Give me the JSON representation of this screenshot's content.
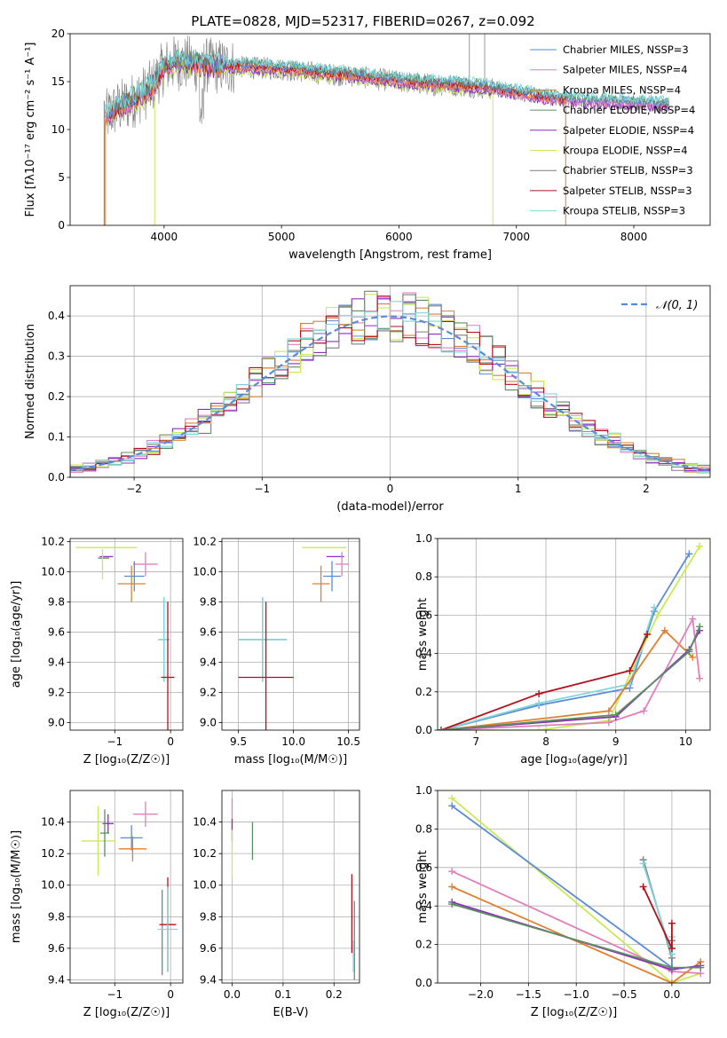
{
  "colors": {
    "chabrier_miles": "#5b8bd6",
    "salpeter_miles": "#e17fbd",
    "kroupa_miles": "#e08030",
    "chabrier_elodie": "#5a9060",
    "salpeter_elodie": "#8e2ec0",
    "kroupa_elodie": "#c9ea56",
    "chabrier_stelib": "#7f7f7f",
    "salpeter_stelib": "#b5101a",
    "kroupa_stelib": "#7fd6dc",
    "grid": "#b0b0b0",
    "normal_line": "#5b8bd6"
  },
  "chart_data": [
    {
      "type": "line",
      "title": "PLATE=0828, MJD=52317, FIBERID=0267, z=0.092",
      "xlabel": "wavelength [Angstrom, rest frame]",
      "ylabel": "Flux [fλ10⁻¹⁷ erg cm⁻² s⁻¹ A⁻¹]",
      "xlim": [
        3200,
        8650
      ],
      "ylim": [
        0,
        20
      ],
      "xticks": [
        4000,
        5000,
        6000,
        7000,
        8000
      ],
      "yticks": [
        0,
        5,
        10,
        15,
        20
      ],
      "grid": false,
      "legend_position": "top-right",
      "series": [
        {
          "name": "Chabrier MILES, NSSP=3",
          "color_key": "chabrier_miles"
        },
        {
          "name": "Salpeter MILES, NSSP=4",
          "color_key": "salpeter_miles"
        },
        {
          "name": "Kroupa MILES, NSSP=4",
          "color_key": "kroupa_miles"
        },
        {
          "name": "Chabrier ELODIE, NSSP=4",
          "color_key": "chabrier_elodie"
        },
        {
          "name": "Salpeter ELODIE, NSSP=4",
          "color_key": "salpeter_elodie"
        },
        {
          "name": "Kroupa ELODIE, NSSP=4",
          "color_key": "kroupa_elodie"
        },
        {
          "name": "Chabrier STELIB, NSSP=3",
          "color_key": "chabrier_stelib"
        },
        {
          "name": "Salpeter STELIB, NSSP=3",
          "color_key": "salpeter_stelib"
        },
        {
          "name": "Kroupa STELIB, NSSP=3",
          "color_key": "kroupa_stelib"
        }
      ],
      "continuum": {
        "x": [
          3500,
          3550,
          3600,
          3700,
          3800,
          3900,
          4000,
          4100,
          4200,
          4300,
          4500,
          4700,
          5000,
          5300,
          5600,
          6000,
          6300,
          6500,
          6700,
          7000,
          7200,
          7400,
          7600,
          7800,
          8000,
          8200,
          8300
        ],
        "y": [
          11.2,
          11.8,
          12.2,
          12.8,
          13.5,
          14.5,
          16.5,
          17.0,
          16.9,
          16.7,
          16.6,
          16.5,
          16.3,
          15.9,
          15.6,
          15.0,
          14.7,
          14.6,
          14.4,
          13.8,
          13.4,
          13.1,
          12.9,
          12.8,
          12.7,
          12.6,
          12.5
        ]
      },
      "x_range_models": [
        3500,
        7420
      ]
    },
    {
      "type": "bar",
      "xlabel": "(data-model)/error",
      "ylabel": "Normed distribution",
      "xlim": [
        -2.5,
        2.5
      ],
      "ylim": [
        0,
        0.475
      ],
      "xticks": [
        -2,
        -1,
        0,
        1,
        2
      ],
      "yticks": [
        0.0,
        0.1,
        0.2,
        0.3,
        0.4
      ],
      "grid": true,
      "legend_position": "top-right",
      "bin_edges_start": -2.5,
      "bin_width": 0.1,
      "reference": {
        "name": "𝒩(0, 1)",
        "mean": 0,
        "sigma": 1
      }
    },
    {
      "type": "scatter",
      "xlabel": "Z [log₁₀(Z/Z☉)]",
      "ylabel": "age  [log₁₀(age/yr)]",
      "xlim": [
        -1.8,
        0.22
      ],
      "ylim": [
        8.95,
        10.22
      ],
      "xticks": [
        -1,
        0
      ],
      "yticks": [
        9.0,
        9.2,
        9.4,
        9.6,
        9.8,
        10.0,
        10.2
      ],
      "grid": true,
      "points": [
        {
          "x": -1.15,
          "y": 10.1,
          "xerr": 0.12,
          "yerr": 0.0,
          "color_key": "salpeter_elodie"
        },
        {
          "x": -1.2,
          "y": 10.09,
          "xerr": 0.1,
          "yerr": 0.0,
          "color_key": "chabrier_elodie"
        },
        {
          "x": -1.15,
          "y": 10.16,
          "xerr": 0.55,
          "yerr": 0.0,
          "color_key": "kroupa_elodie"
        },
        {
          "x": -1.22,
          "y": 10.05,
          "xerr": 0.0,
          "yerr": 0.1,
          "color_key": "kroupa_elodie"
        },
        {
          "x": -0.45,
          "y": 10.05,
          "xerr": 0.22,
          "yerr": 0.08,
          "color_key": "salpeter_miles"
        },
        {
          "x": -0.65,
          "y": 9.97,
          "xerr": 0.18,
          "yerr": 0.1,
          "color_key": "chabrier_miles"
        },
        {
          "x": -0.7,
          "y": 9.92,
          "xerr": 0.25,
          "yerr": 0.12,
          "color_key": "kroupa_miles"
        },
        {
          "x": -0.12,
          "y": 9.55,
          "xerr": 0.1,
          "yerr": 0.28,
          "color_key": "chabrier_stelib"
        },
        {
          "x": -0.12,
          "y": 9.55,
          "xerr": 0.1,
          "yerr": 0.28,
          "color_key": "kroupa_stelib"
        },
        {
          "x": -0.05,
          "y": 9.3,
          "xerr": 0.12,
          "yerr": 0.5,
          "color_key": "salpeter_stelib"
        }
      ]
    },
    {
      "type": "scatter",
      "xlabel": "mass [log₁₀(M/M☉)]",
      "ylabel": "",
      "xlim": [
        9.35,
        10.6
      ],
      "ylim": [
        8.95,
        10.22
      ],
      "xticks": [
        9.5,
        10.0,
        10.5
      ],
      "yticks": [
        9.0,
        9.2,
        9.4,
        9.6,
        9.8,
        10.0,
        10.2
      ],
      "grid": true,
      "points": [
        {
          "x": 10.28,
          "y": 10.16,
          "xerr": 0.2,
          "yerr": 0.0,
          "color_key": "kroupa_elodie"
        },
        {
          "x": 10.38,
          "y": 10.1,
          "xerr": 0.08,
          "yerr": 0.0,
          "color_key": "salpeter_elodie"
        },
        {
          "x": 10.44,
          "y": 10.05,
          "xerr": 0.06,
          "yerr": 0.08,
          "color_key": "salpeter_miles"
        },
        {
          "x": 10.35,
          "y": 9.97,
          "xerr": 0.08,
          "yerr": 0.1,
          "color_key": "chabrier_miles"
        },
        {
          "x": 10.25,
          "y": 9.92,
          "xerr": 0.08,
          "yerr": 0.12,
          "color_key": "kroupa_miles"
        },
        {
          "x": 9.72,
          "y": 9.55,
          "xerr": 0.22,
          "yerr": 0.28,
          "color_key": "chabrier_stelib"
        },
        {
          "x": 9.72,
          "y": 9.55,
          "xerr": 0.22,
          "yerr": 0.28,
          "color_key": "kroupa_stelib"
        },
        {
          "x": 9.75,
          "y": 9.3,
          "xerr": 0.25,
          "yerr": 0.5,
          "color_key": "salpeter_stelib"
        }
      ]
    },
    {
      "type": "line",
      "xlabel": "age  [log₁₀(age/yr)]",
      "ylabel": "mass weight",
      "xlim": [
        6.45,
        10.35
      ],
      "ylim": [
        0,
        1.0
      ],
      "xticks": [
        7,
        8,
        9,
        10
      ],
      "yticks": [
        0.0,
        0.2,
        0.4,
        0.6,
        0.8,
        1.0
      ],
      "grid": true,
      "series": [
        {
          "color_key": "chabrier_miles",
          "x": [
            6.5,
            7.9,
            9.2,
            9.55,
            10.05
          ],
          "y": [
            0.0,
            0.13,
            0.22,
            0.62,
            0.92
          ]
        },
        {
          "color_key": "kroupa_elodie",
          "x": [
            6.5,
            7.9,
            8.9,
            9.6,
            10.2
          ],
          "y": [
            0.0,
            0.0,
            0.05,
            0.6,
            0.96
          ]
        },
        {
          "color_key": "kroupa_stelib",
          "x": [
            6.5,
            7.9,
            9.2,
            9.55
          ],
          "y": [
            0.0,
            0.14,
            0.24,
            0.64
          ]
        },
        {
          "color_key": "salpeter_stelib",
          "x": [
            6.5,
            7.9,
            9.2,
            9.45
          ],
          "y": [
            0.0,
            0.19,
            0.31,
            0.5
          ]
        },
        {
          "color_key": "kroupa_miles",
          "x": [
            6.5,
            8.9,
            9.7,
            10.1
          ],
          "y": [
            0.0,
            0.1,
            0.52,
            0.38
          ]
        },
        {
          "color_key": "salpeter_miles",
          "x": [
            6.5,
            8.9,
            9.4,
            10.1,
            10.2
          ],
          "y": [
            0.0,
            0.04,
            0.1,
            0.58,
            0.27
          ]
        },
        {
          "color_key": "salpeter_elodie",
          "x": [
            6.5,
            9.0,
            10.05,
            10.2
          ],
          "y": [
            0.0,
            0.07,
            0.42,
            0.52
          ]
        },
        {
          "color_key": "chabrier_elodie",
          "x": [
            6.5,
            9.0,
            10.05,
            10.2
          ],
          "y": [
            0.0,
            0.08,
            0.41,
            0.54
          ]
        }
      ]
    },
    {
      "type": "scatter",
      "xlabel": "Z [log₁₀(Z/Z☉)]",
      "ylabel": "mass [log₁₀(M/M☉)]",
      "xlim": [
        -1.8,
        0.22
      ],
      "ylim": [
        9.38,
        10.6
      ],
      "xticks": [
        -1,
        0
      ],
      "yticks": [
        9.4,
        9.6,
        9.8,
        10.0,
        10.2,
        10.4
      ],
      "grid": true,
      "points": [
        {
          "x": -1.3,
          "y": 10.28,
          "xerr": 0.3,
          "yerr": 0.22,
          "color_key": "kroupa_elodie"
        },
        {
          "x": -1.12,
          "y": 10.39,
          "xerr": 0.1,
          "yerr": 0.06,
          "color_key": "salpeter_elodie"
        },
        {
          "x": -1.18,
          "y": 10.33,
          "xerr": 0.08,
          "yerr": 0.15,
          "color_key": "chabrier_elodie"
        },
        {
          "x": -0.45,
          "y": 10.45,
          "xerr": 0.22,
          "yerr": 0.08,
          "color_key": "salpeter_miles"
        },
        {
          "x": -0.7,
          "y": 10.3,
          "xerr": 0.2,
          "yerr": 0.08,
          "color_key": "chabrier_miles"
        },
        {
          "x": -0.68,
          "y": 10.23,
          "xerr": 0.25,
          "yerr": 0.08,
          "color_key": "kroupa_miles"
        },
        {
          "x": -0.15,
          "y": 9.7,
          "xerr": 0.0,
          "yerr": 0.27,
          "color_key": "chabrier_stelib"
        },
        {
          "x": -0.05,
          "y": 9.75,
          "xerr": 0.15,
          "yerr": 0.3,
          "color_key": "salpeter_stelib"
        },
        {
          "x": -0.05,
          "y": 9.72,
          "xerr": 0.18,
          "yerr": 0.27,
          "color_key": "kroupa_stelib"
        }
      ]
    },
    {
      "type": "scatter",
      "xlabel": "E(B-V)",
      "ylabel": "",
      "xlim": [
        -0.02,
        0.25
      ],
      "ylim": [
        9.38,
        10.6
      ],
      "xticks": [
        0.0,
        0.1,
        0.2
      ],
      "yticks": [
        9.4,
        9.6,
        9.8,
        10.0,
        10.2,
        10.4
      ],
      "grid": true,
      "points": [
        {
          "x": 0.0,
          "y": 10.45,
          "xerr": 0.0,
          "yerr": 0.1,
          "color_key": "salpeter_miles"
        },
        {
          "x": 0.0,
          "y": 10.35,
          "xerr": 0.0,
          "yerr": 0.07,
          "color_key": "salpeter_elodie"
        },
        {
          "x": 0.0,
          "y": 10.2,
          "xerr": 0.0,
          "yerr": 0.15,
          "color_key": "kroupa_elodie"
        },
        {
          "x": 0.04,
          "y": 10.28,
          "xerr": 0.0,
          "yerr": 0.12,
          "color_key": "chabrier_elodie"
        },
        {
          "x": 0.235,
          "y": 9.82,
          "xerr": 0.0,
          "yerr": 0.25,
          "color_key": "salpeter_stelib"
        },
        {
          "x": 0.24,
          "y": 9.65,
          "xerr": 0.0,
          "yerr": 0.25,
          "color_key": "chabrier_stelib"
        },
        {
          "x": 0.238,
          "y": 9.55,
          "xerr": 0.0,
          "yerr": 0.1,
          "color_key": "kroupa_stelib"
        }
      ]
    },
    {
      "type": "line",
      "xlabel": "Z [log₁₀(Z/Z☉)]",
      "ylabel": "mass weight",
      "xlim": [
        -2.45,
        0.4
      ],
      "ylim": [
        0,
        1.0
      ],
      "xticks": [
        -2.0,
        -1.5,
        -1.0,
        -0.5,
        0.0
      ],
      "yticks": [
        0.0,
        0.2,
        0.4,
        0.6,
        0.8,
        1.0
      ],
      "grid": true,
      "series": [
        {
          "color_key": "kroupa_elodie",
          "x": [
            -2.3,
            0.0,
            0.3
          ],
          "y": [
            0.96,
            0.0,
            0.05
          ]
        },
        {
          "color_key": "chabrier_miles",
          "x": [
            -2.3,
            0.0,
            0.0
          ],
          "y": [
            0.92,
            0.08,
            0.18
          ]
        },
        {
          "color_key": "salpeter_miles",
          "x": [
            -2.3,
            0.0,
            0.3
          ],
          "y": [
            0.58,
            0.06,
            0.05
          ]
        },
        {
          "color_key": "kroupa_miles",
          "x": [
            -2.3,
            0.0,
            0.3
          ],
          "y": [
            0.5,
            0.0,
            0.11
          ]
        },
        {
          "color_key": "salpeter_elodie",
          "x": [
            -2.3,
            0.0,
            0.3
          ],
          "y": [
            0.42,
            0.07,
            0.09
          ]
        },
        {
          "color_key": "chabrier_elodie",
          "x": [
            -2.3,
            0.0,
            0.3
          ],
          "y": [
            0.41,
            0.08,
            0.08
          ]
        },
        {
          "color_key": "chabrier_stelib",
          "x": [
            -0.3,
            0.0,
            0.0
          ],
          "y": [
            0.64,
            0.13,
            0.22
          ]
        },
        {
          "color_key": "kroupa_stelib",
          "x": [
            -0.3,
            0.0,
            0.0
          ],
          "y": [
            0.62,
            0.15,
            0.24
          ]
        },
        {
          "color_key": "salpeter_stelib",
          "x": [
            -0.3,
            0.0,
            0.0
          ],
          "y": [
            0.5,
            0.18,
            0.31
          ]
        }
      ]
    }
  ]
}
